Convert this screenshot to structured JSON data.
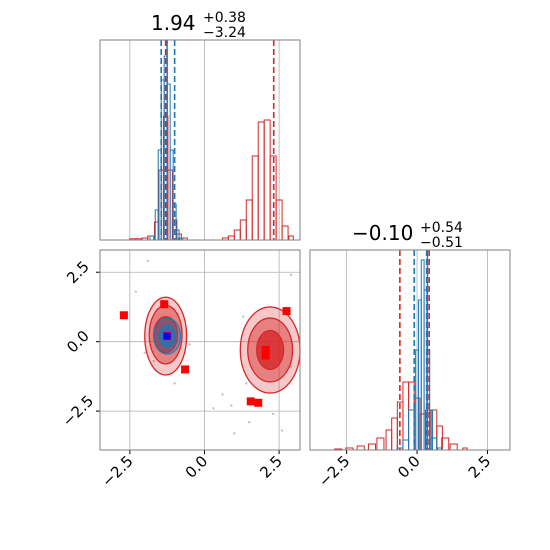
{
  "chart_data": {
    "type": "corner",
    "colors": {
      "red": "#d62728",
      "blue": "#1f77b4",
      "marker": "#ff0000",
      "truth": "#0000ff",
      "grid": "#b0b0b0"
    },
    "panels": [
      {
        "id": "hist-x",
        "title": {
          "value": "1.94",
          "plus": "+0.38",
          "minus": "−3.24"
        },
        "xlim": [
          -3.5,
          3.2
        ],
        "red_hist": [
          {
            "x": -2.4,
            "y": 0.006
          },
          {
            "x": -2.2,
            "y": 0.006
          },
          {
            "x": -2.0,
            "y": 0.01
          },
          {
            "x": -1.8,
            "y": 0.02
          },
          {
            "x": -1.6,
            "y": 0.09
          },
          {
            "x": -1.45,
            "y": 0.35
          },
          {
            "x": -1.3,
            "y": 0.62
          },
          {
            "x": -1.15,
            "y": 0.35
          },
          {
            "x": -1.0,
            "y": 0.1
          },
          {
            "x": -0.85,
            "y": 0.03
          },
          {
            "x": -0.7,
            "y": 0.01
          },
          {
            "x": 0.7,
            "y": 0.01
          },
          {
            "x": 0.9,
            "y": 0.02
          },
          {
            "x": 1.1,
            "y": 0.05
          },
          {
            "x": 1.3,
            "y": 0.1
          },
          {
            "x": 1.5,
            "y": 0.2
          },
          {
            "x": 1.7,
            "y": 0.42
          },
          {
            "x": 1.9,
            "y": 0.59
          },
          {
            "x": 2.1,
            "y": 0.6
          },
          {
            "x": 2.3,
            "y": 0.42
          },
          {
            "x": 2.5,
            "y": 0.2
          },
          {
            "x": 2.7,
            "y": 0.07
          },
          {
            "x": 2.9,
            "y": 0.02
          }
        ],
        "blue_hist": [
          {
            "x": -1.75,
            "y": 0.02
          },
          {
            "x": -1.6,
            "y": 0.15
          },
          {
            "x": -1.5,
            "y": 0.45
          },
          {
            "x": -1.4,
            "y": 0.8
          },
          {
            "x": -1.3,
            "y": 0.92
          },
          {
            "x": -1.2,
            "y": 0.78
          },
          {
            "x": -1.1,
            "y": 0.45
          },
          {
            "x": -1.0,
            "y": 0.18
          },
          {
            "x": -0.9,
            "y": 0.05
          },
          {
            "x": -0.8,
            "y": 0.01
          }
        ],
        "red_lines": [
          -1.3,
          2.32
        ],
        "blue_lines": [
          -1.45,
          -1.0
        ],
        "blue_solid": -1.25,
        "ticks": [
          -2.5,
          0.0,
          2.5
        ]
      },
      {
        "id": "hist-y",
        "title": {
          "value": "−0.10",
          "plus": "+0.54",
          "minus": "−0.51"
        },
        "xlim": [
          -3.8,
          3.3
        ],
        "red_hist": [
          {
            "x": -2.8,
            "y": 0.005
          },
          {
            "x": -2.4,
            "y": 0.01
          },
          {
            "x": -2.0,
            "y": 0.02
          },
          {
            "x": -1.6,
            "y": 0.03
          },
          {
            "x": -1.3,
            "y": 0.06
          },
          {
            "x": -1.0,
            "y": 0.1
          },
          {
            "x": -0.8,
            "y": 0.16
          },
          {
            "x": -0.6,
            "y": 0.24
          },
          {
            "x": -0.4,
            "y": 0.34
          },
          {
            "x": -0.2,
            "y": 0.34
          },
          {
            "x": 0.0,
            "y": 0.26
          },
          {
            "x": 0.2,
            "y": 0.18
          },
          {
            "x": 0.4,
            "y": 0.2
          },
          {
            "x": 0.6,
            "y": 0.2
          },
          {
            "x": 0.8,
            "y": 0.12
          },
          {
            "x": 1.0,
            "y": 0.06
          },
          {
            "x": 1.3,
            "y": 0.03
          },
          {
            "x": 1.7,
            "y": 0.01
          }
        ],
        "blue_hist": [
          {
            "x": -0.6,
            "y": 0.01
          },
          {
            "x": -0.4,
            "y": 0.05
          },
          {
            "x": -0.2,
            "y": 0.2
          },
          {
            "x": 0.0,
            "y": 0.5
          },
          {
            "x": 0.1,
            "y": 0.75
          },
          {
            "x": 0.2,
            "y": 0.95
          },
          {
            "x": 0.3,
            "y": 0.8
          },
          {
            "x": 0.4,
            "y": 0.5
          },
          {
            "x": 0.5,
            "y": 0.2
          },
          {
            "x": 0.6,
            "y": 0.06
          },
          {
            "x": 0.8,
            "y": 0.01
          }
        ],
        "red_lines": [
          -0.61,
          0.43
        ],
        "blue_lines": [
          -0.1,
          0.34
        ],
        "blue_solid": 0.37,
        "ticks": [
          -2.5,
          0.0,
          2.5
        ]
      }
    ],
    "scatter_panel": {
      "id": "joint",
      "xlim": [
        -3.5,
        3.2
      ],
      "ylim": [
        -3.9,
        3.3
      ],
      "xticks": [
        -2.5,
        0.0,
        2.5
      ],
      "yticks": [
        -2.5,
        0.0,
        2.5
      ],
      "red_contours": [
        {
          "cx": -1.3,
          "cy": 0.2,
          "rx": 0.7,
          "ry": 1.4
        },
        {
          "cx": -1.3,
          "cy": 0.25,
          "rx": 0.55,
          "ry": 1.05
        },
        {
          "cx": -1.3,
          "cy": 0.25,
          "rx": 0.4,
          "ry": 0.65
        },
        {
          "cx": 2.2,
          "cy": -0.3,
          "rx": 1.0,
          "ry": 1.55
        },
        {
          "cx": 2.2,
          "cy": -0.3,
          "rx": 0.75,
          "ry": 1.15
        },
        {
          "cx": 2.2,
          "cy": -0.3,
          "rx": 0.45,
          "ry": 0.7
        }
      ],
      "blue_contours": [
        {
          "cx": -1.25,
          "cy": 0.2,
          "rx": 0.45,
          "ry": 0.65
        },
        {
          "cx": -1.25,
          "cy": 0.2,
          "rx": 0.28,
          "ry": 0.4
        }
      ],
      "markers": [
        {
          "x": -2.7,
          "y": 0.95
        },
        {
          "x": -1.35,
          "y": 1.35
        },
        {
          "x": -0.65,
          "y": -1.0
        },
        {
          "x": 2.05,
          "y": -0.3
        },
        {
          "x": 2.05,
          "y": -0.5
        },
        {
          "x": 2.75,
          "y": 1.1
        },
        {
          "x": 1.55,
          "y": -2.15
        },
        {
          "x": 1.8,
          "y": -2.2
        },
        {
          "x": -1.25,
          "y": 0.2
        }
      ],
      "truth": {
        "x": -1.25,
        "y": 0.2
      },
      "scatter_points": [
        {
          "x": -1.9,
          "y": 2.9
        },
        {
          "x": -1.7,
          "y": -0.7
        },
        {
          "x": -0.9,
          "y": 1.0
        },
        {
          "x": -0.5,
          "y": -0.1
        },
        {
          "x": 0.3,
          "y": -2.4
        },
        {
          "x": 0.9,
          "y": -2.3
        },
        {
          "x": 1.0,
          "y": -3.3
        },
        {
          "x": 1.4,
          "y": -1.5
        },
        {
          "x": 1.5,
          "y": -2.9
        },
        {
          "x": 2.3,
          "y": -2.6
        },
        {
          "x": 2.6,
          "y": -3.2
        },
        {
          "x": 2.9,
          "y": 2.4
        },
        {
          "x": -2.3,
          "y": 1.8
        },
        {
          "x": 2.9,
          "y": -0.9
        },
        {
          "x": 1.3,
          "y": 0.9
        },
        {
          "x": -1.0,
          "y": -1.5
        },
        {
          "x": -2.0,
          "y": -0.4
        },
        {
          "x": 0.6,
          "y": -1.9
        }
      ]
    }
  }
}
